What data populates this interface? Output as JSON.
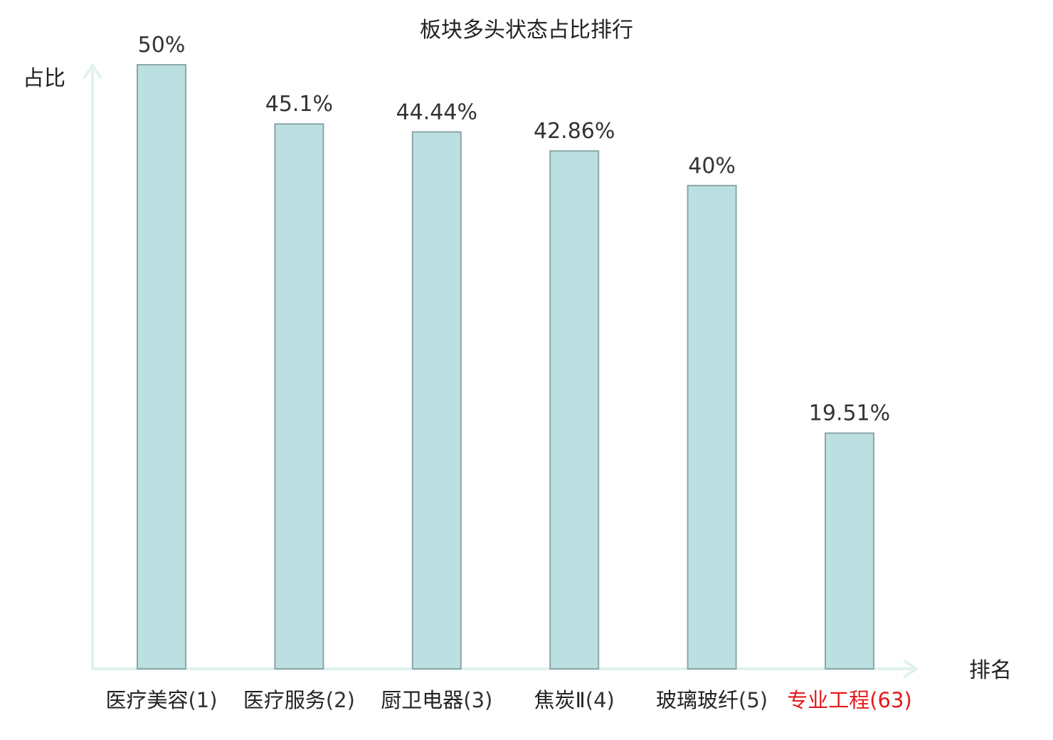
{
  "chart_data": {
    "type": "bar",
    "title": "板块多头状态占比排行",
    "ylabel": "占比",
    "xlabel": "排名",
    "ylim": [
      0,
      50
    ],
    "grid": false,
    "categories": [
      {
        "name": "医疗美容",
        "rank": "(1)",
        "highlight": false
      },
      {
        "name": "医疗服务",
        "rank": "(2)",
        "highlight": false
      },
      {
        "name": "厨卫电器",
        "rank": "(3)",
        "highlight": false
      },
      {
        "name": "焦炭Ⅱ",
        "rank": "(4)",
        "highlight": false
      },
      {
        "name": "玻璃玻纤",
        "rank": "(5)",
        "highlight": false
      },
      {
        "name": "专业工程",
        "rank": "(63)",
        "highlight": true
      }
    ],
    "values": [
      50,
      45.1,
      44.44,
      42.86,
      40,
      19.51
    ],
    "value_labels": [
      "50%",
      "45.1%",
      "44.44%",
      "42.86%",
      "40%",
      "19.51%"
    ]
  },
  "colors": {
    "bar_fill": "#bce0e2",
    "bar_stroke": "#8aa6a8",
    "axis": "#e0f2f0",
    "text": "#222222",
    "value_text": "#333333",
    "highlight": "#e3191c"
  }
}
